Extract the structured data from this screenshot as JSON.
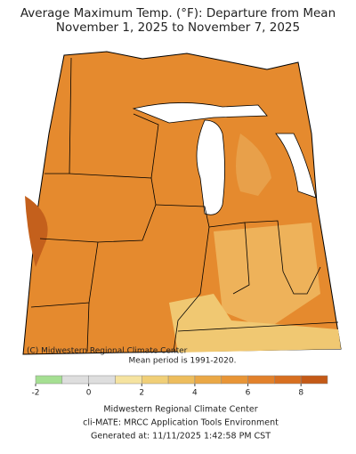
{
  "header": {
    "title": "Average Maximum Temp. (°F): Departure from Mean",
    "subtitle": "November 1, 2025 to November 7, 2025"
  },
  "map": {
    "credit": "(C) Midwestern Regional Climate Center",
    "note": "Mean period is 1991-2020."
  },
  "colorbar": {
    "bins": [
      -2,
      -1,
      0,
      1,
      2,
      3,
      4,
      5,
      6,
      7,
      8,
      9
    ],
    "colors": [
      "#a5df92",
      "#dedede",
      "#dedede",
      "#f5e3a0",
      "#f0cf77",
      "#edbd5d",
      "#eaa846",
      "#e89536",
      "#e2812b",
      "#d86f20",
      "#c45a17"
    ],
    "ticks": [
      -2,
      0,
      2,
      4,
      6,
      8
    ]
  },
  "footer": {
    "lines": [
      "Midwestern Regional Climate Center",
      "cli-MATE: MRCC Application Tools Environment",
      "Generated at: 11/11/2025 1:42:58 PM CST"
    ]
  }
}
